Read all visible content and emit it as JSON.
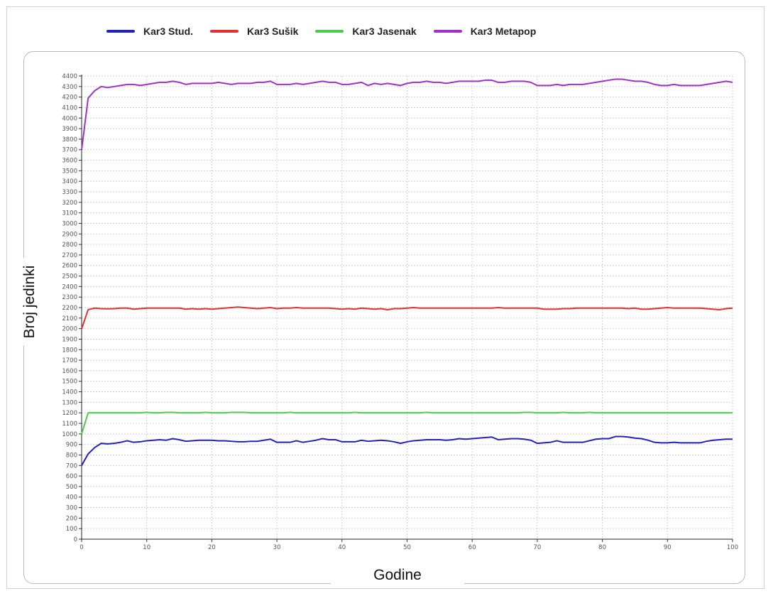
{
  "chart_data": {
    "type": "line",
    "xlabel": "Godine",
    "ylabel": "Broj jedinki",
    "xlim": [
      0,
      100
    ],
    "ylim": [
      0,
      4400
    ],
    "x_ticks": [
      0,
      10,
      20,
      30,
      40,
      50,
      60,
      70,
      80,
      90,
      100
    ],
    "y_tick_step": 100,
    "grid": true,
    "legend_position": "top",
    "x_years": [
      0,
      1,
      2,
      3,
      4,
      5,
      6,
      7,
      8,
      9,
      10,
      11,
      12,
      13,
      14,
      15,
      16,
      17,
      18,
      19,
      20,
      21,
      22,
      23,
      24,
      25,
      26,
      27,
      28,
      29,
      30,
      31,
      32,
      33,
      34,
      35,
      36,
      37,
      38,
      39,
      40,
      41,
      42,
      43,
      44,
      45,
      46,
      47,
      48,
      49,
      50,
      51,
      52,
      53,
      54,
      55,
      56,
      57,
      58,
      59,
      60,
      61,
      62,
      63,
      64,
      65,
      66,
      67,
      68,
      69,
      70,
      71,
      72,
      73,
      74,
      75,
      76,
      77,
      78,
      79,
      80,
      81,
      82,
      83,
      84,
      85,
      86,
      87,
      88,
      89,
      90,
      91,
      92,
      93,
      94,
      95,
      96,
      97,
      98,
      99,
      100
    ],
    "series": [
      {
        "name": "Kar3 Stud.",
        "color": "#2222bb",
        "values": [
          700,
          810,
          870,
          910,
          905,
          910,
          920,
          935,
          920,
          925,
          935,
          940,
          945,
          940,
          955,
          945,
          930,
          935,
          940,
          940,
          940,
          935,
          935,
          930,
          925,
          925,
          930,
          930,
          940,
          950,
          920,
          920,
          920,
          935,
          920,
          930,
          940,
          955,
          945,
          945,
          925,
          925,
          925,
          940,
          930,
          935,
          940,
          935,
          925,
          910,
          925,
          935,
          940,
          945,
          945,
          945,
          940,
          945,
          955,
          950,
          955,
          960,
          965,
          970,
          945,
          950,
          955,
          955,
          950,
          940,
          910,
          915,
          920,
          935,
          920,
          920,
          920,
          920,
          935,
          950,
          955,
          955,
          975,
          975,
          970,
          960,
          955,
          940,
          920,
          915,
          915,
          920,
          915,
          915,
          915,
          915,
          930,
          940,
          945,
          950,
          950
        ]
      },
      {
        "name": "Kar3 Sušik",
        "color": "#e03030",
        "values": [
          2000,
          2180,
          2195,
          2190,
          2188,
          2190,
          2195,
          2195,
          2185,
          2190,
          2195,
          2195,
          2195,
          2195,
          2195,
          2195,
          2185,
          2190,
          2185,
          2190,
          2185,
          2190,
          2195,
          2200,
          2205,
          2200,
          2195,
          2190,
          2195,
          2200,
          2190,
          2195,
          2195,
          2200,
          2195,
          2195,
          2195,
          2195,
          2195,
          2190,
          2185,
          2190,
          2185,
          2195,
          2190,
          2185,
          2190,
          2180,
          2190,
          2190,
          2195,
          2200,
          2195,
          2195,
          2195,
          2195,
          2195,
          2195,
          2195,
          2195,
          2195,
          2195,
          2195,
          2195,
          2200,
          2195,
          2195,
          2195,
          2195,
          2195,
          2195,
          2185,
          2185,
          2185,
          2190,
          2190,
          2195,
          2195,
          2195,
          2195,
          2195,
          2195,
          2195,
          2195,
          2190,
          2195,
          2185,
          2185,
          2190,
          2195,
          2200,
          2195,
          2195,
          2195,
          2195,
          2195,
          2190,
          2185,
          2180,
          2190,
          2195
        ]
      },
      {
        "name": "Kar3 Jasenak",
        "color": "#4ccc4c",
        "values": [
          1000,
          1200,
          1200,
          1200,
          1200,
          1200,
          1200,
          1200,
          1200,
          1200,
          1205,
          1200,
          1200,
          1205,
          1205,
          1200,
          1200,
          1200,
          1200,
          1205,
          1200,
          1200,
          1200,
          1205,
          1205,
          1205,
          1200,
          1200,
          1200,
          1200,
          1200,
          1200,
          1205,
          1200,
          1200,
          1200,
          1200,
          1200,
          1200,
          1200,
          1200,
          1200,
          1205,
          1200,
          1200,
          1200,
          1200,
          1200,
          1200,
          1200,
          1200,
          1200,
          1200,
          1205,
          1200,
          1200,
          1200,
          1200,
          1200,
          1200,
          1200,
          1200,
          1200,
          1200,
          1200,
          1200,
          1200,
          1200,
          1205,
          1205,
          1200,
          1200,
          1200,
          1200,
          1205,
          1200,
          1200,
          1200,
          1205,
          1200,
          1200,
          1200,
          1200,
          1200,
          1200,
          1200,
          1200,
          1200,
          1200,
          1200,
          1200,
          1200,
          1200,
          1200,
          1200,
          1200,
          1200,
          1200,
          1200,
          1200,
          1200
        ]
      },
      {
        "name": "Kar3 Metapop",
        "color": "#a030c8",
        "values": [
          3700,
          4190,
          4260,
          4300,
          4290,
          4300,
          4310,
          4320,
          4320,
          4310,
          4320,
          4330,
          4340,
          4340,
          4350,
          4340,
          4320,
          4330,
          4330,
          4330,
          4330,
          4340,
          4330,
          4320,
          4330,
          4330,
          4330,
          4340,
          4340,
          4350,
          4320,
          4320,
          4320,
          4330,
          4320,
          4330,
          4340,
          4350,
          4340,
          4340,
          4320,
          4320,
          4330,
          4340,
          4310,
          4330,
          4320,
          4330,
          4320,
          4310,
          4330,
          4340,
          4340,
          4350,
          4340,
          4340,
          4330,
          4340,
          4350,
          4350,
          4350,
          4350,
          4360,
          4360,
          4340,
          4340,
          4350,
          4350,
          4350,
          4340,
          4310,
          4310,
          4310,
          4320,
          4310,
          4320,
          4320,
          4320,
          4330,
          4340,
          4350,
          4360,
          4370,
          4370,
          4360,
          4350,
          4350,
          4340,
          4320,
          4310,
          4310,
          4320,
          4310,
          4310,
          4310,
          4310,
          4320,
          4330,
          4340,
          4350,
          4340
        ]
      }
    ]
  }
}
